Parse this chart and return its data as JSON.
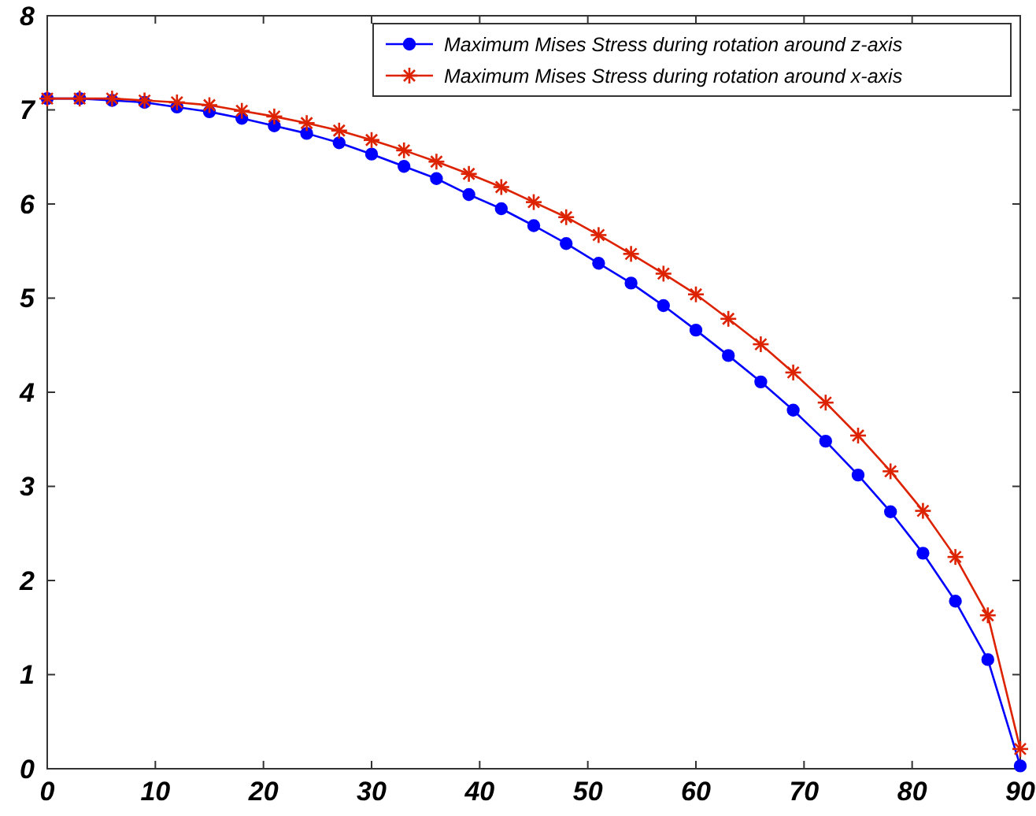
{
  "chart_data": {
    "type": "line",
    "x": [
      0,
      3,
      6,
      9,
      12,
      15,
      18,
      21,
      24,
      27,
      30,
      33,
      36,
      39,
      42,
      45,
      48,
      51,
      54,
      57,
      60,
      63,
      66,
      69,
      72,
      75,
      78,
      81,
      84,
      87,
      90
    ],
    "series": [
      {
        "name": "Maximum Mises Stress during rotation around z-axis",
        "color": "#0000ff",
        "marker": "circle",
        "values": [
          7.12,
          7.12,
          7.1,
          7.08,
          7.03,
          6.98,
          6.91,
          6.83,
          6.75,
          6.65,
          6.53,
          6.4,
          6.27,
          6.1,
          5.95,
          5.77,
          5.58,
          5.37,
          5.16,
          4.92,
          4.66,
          4.39,
          4.11,
          3.81,
          3.48,
          3.12,
          2.73,
          2.29,
          1.78,
          1.16,
          0.03
        ]
      },
      {
        "name": "Maximum Mises Stress during rotation around x-axis",
        "color": "#dd2200",
        "marker": "cross",
        "values": [
          7.12,
          7.12,
          7.12,
          7.1,
          7.08,
          7.05,
          6.99,
          6.93,
          6.86,
          6.78,
          6.68,
          6.57,
          6.45,
          6.32,
          6.18,
          6.02,
          5.86,
          5.67,
          5.47,
          5.26,
          5.04,
          4.78,
          4.51,
          4.21,
          3.89,
          3.54,
          3.16,
          2.74,
          2.25,
          1.63,
          0.21
        ]
      }
    ],
    "xlim": [
      0,
      90
    ],
    "xticks": [
      0,
      10,
      20,
      30,
      40,
      50,
      60,
      70,
      80,
      90
    ],
    "ylim": [
      0,
      8
    ],
    "yticks": [
      0,
      1,
      2,
      3,
      4,
      5,
      6,
      7,
      8
    ],
    "grid": false,
    "legend": "top right",
    "line_style": "solid"
  }
}
